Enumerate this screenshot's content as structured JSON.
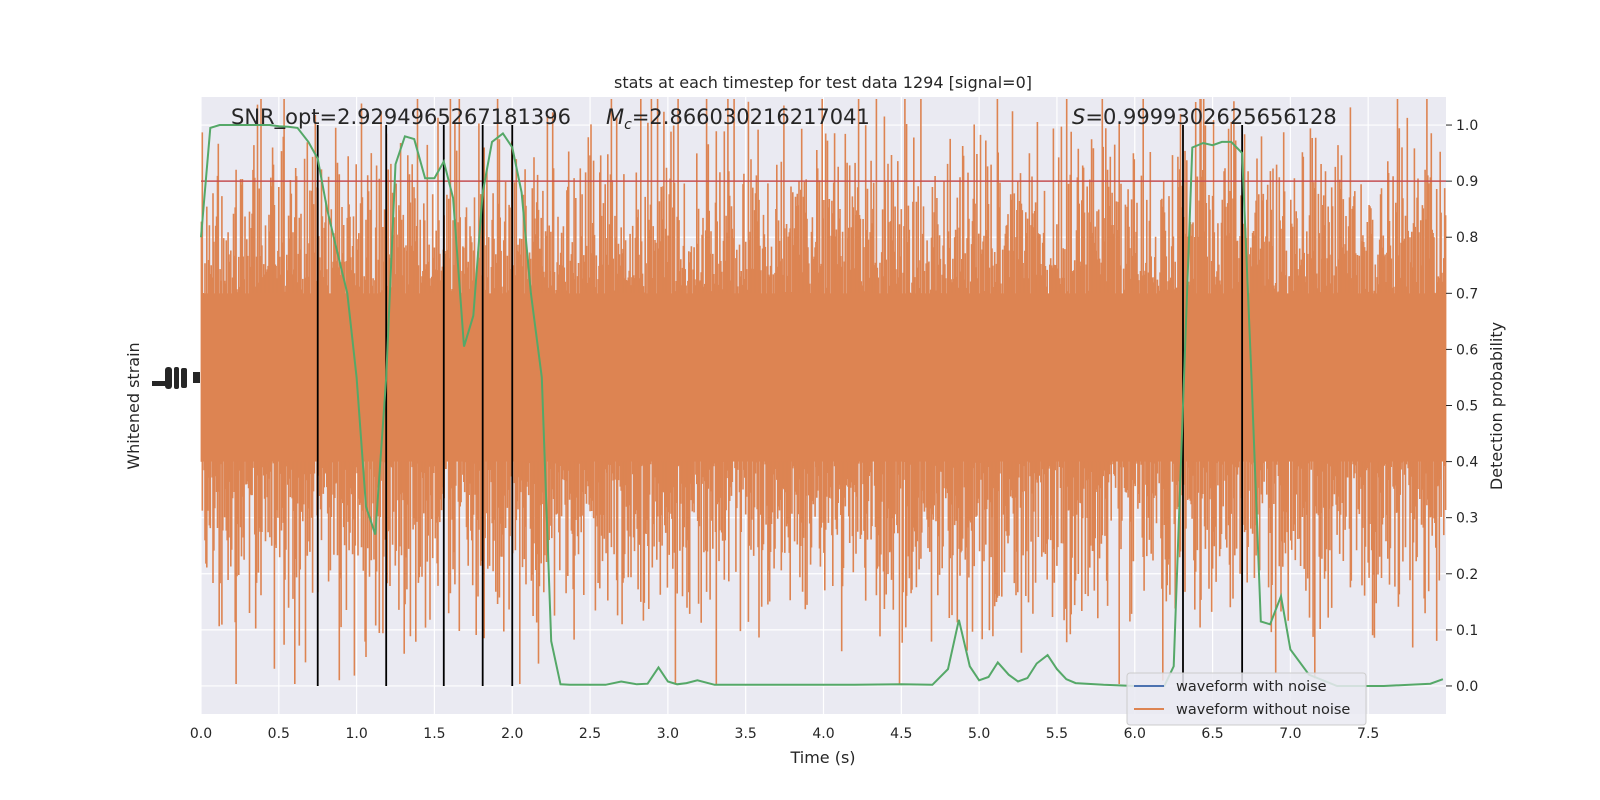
{
  "chart_data": {
    "type": "line",
    "title": "stats at each timestep for test data 1294 [signal=0]",
    "xlabel": "Time (s)",
    "ylabel_left": "Whitened strain",
    "ylabel_right": "Detection probability",
    "xlim": [
      0,
      8.0
    ],
    "ylim_right": [
      -0.05,
      1.05
    ],
    "x_ticks": [
      0.0,
      0.5,
      1.0,
      1.5,
      2.0,
      2.5,
      3.0,
      3.5,
      4.0,
      4.5,
      5.0,
      5.5,
      6.0,
      6.5,
      7.0,
      7.5
    ],
    "x_tick_labels": [
      "0.0",
      "0.5",
      "1.0",
      "1.5",
      "2.0",
      "2.5",
      "3.0",
      "3.5",
      "4.0",
      "4.5",
      "5.0",
      "5.5",
      "6.0",
      "6.5",
      "7.0",
      "7.5"
    ],
    "y_right_ticks": [
      0.0,
      0.1,
      0.2,
      0.3,
      0.4,
      0.5,
      0.6,
      0.7,
      0.8,
      0.9,
      1.0
    ],
    "y_right_tick_labels": [
      "0.0",
      "0.1",
      "0.2",
      "0.3",
      "0.4",
      "0.5",
      "0.6",
      "0.7",
      "0.8",
      "0.9",
      "1.0"
    ],
    "grid": true,
    "legend_position": "lower-right",
    "annotations": {
      "snr": "SNR_opt=2.9294965267181396",
      "mc_symbol": "M",
      "mc_sub": "c",
      "mc_value": "=2.866030216217041",
      "s_symbol": "S",
      "s_value": "=0.9999302625656128"
    },
    "threshold": 0.9,
    "vertical_lines_x": [
      0.75,
      1.19,
      1.56,
      1.81,
      2.0,
      6.31,
      6.69
    ],
    "series": [
      {
        "name": "waveform with noise",
        "color": "#4c72b0",
        "style": "noise-band"
      },
      {
        "name": "waveform without noise",
        "color": "#dd8452",
        "style": "noise-band"
      },
      {
        "name": "",
        "color": "#55a868",
        "style": "probability-line",
        "x": [
          0.0,
          0.06,
          0.12,
          0.19,
          0.25,
          0.31,
          0.37,
          0.44,
          0.5,
          0.56,
          0.62,
          0.69,
          0.75,
          0.81,
          0.87,
          0.94,
          1.0,
          1.06,
          1.12,
          1.19,
          1.25,
          1.31,
          1.37,
          1.44,
          1.5,
          1.56,
          1.62,
          1.69,
          1.75,
          1.81,
          1.87,
          1.94,
          2.0,
          2.06,
          2.12,
          2.19,
          2.25,
          2.31,
          2.37,
          2.6,
          2.7,
          2.8,
          2.87,
          2.94,
          3.0,
          3.06,
          3.12,
          3.19,
          3.3,
          3.5,
          3.8,
          4.2,
          4.5,
          4.7,
          4.8,
          4.87,
          4.94,
          5.0,
          5.06,
          5.12,
          5.19,
          5.25,
          5.31,
          5.37,
          5.44,
          5.5,
          5.56,
          5.62,
          5.8,
          6.0,
          6.19,
          6.25,
          6.31,
          6.37,
          6.44,
          6.5,
          6.56,
          6.62,
          6.69,
          6.75,
          6.81,
          6.87,
          6.94,
          7.0,
          7.12,
          7.3,
          7.6,
          7.9,
          7.98
        ],
        "y": [
          0.8,
          0.995,
          1.0,
          1.0,
          1.0,
          1.0,
          1.0,
          1.0,
          0.998,
          0.997,
          0.995,
          0.97,
          0.94,
          0.85,
          0.78,
          0.7,
          0.55,
          0.32,
          0.27,
          0.55,
          0.93,
          0.98,
          0.975,
          0.905,
          0.905,
          0.935,
          0.87,
          0.605,
          0.66,
          0.88,
          0.97,
          0.985,
          0.96,
          0.88,
          0.7,
          0.55,
          0.08,
          0.003,
          0.002,
          0.002,
          0.008,
          0.003,
          0.004,
          0.033,
          0.008,
          0.003,
          0.005,
          0.01,
          0.002,
          0.002,
          0.002,
          0.002,
          0.003,
          0.002,
          0.03,
          0.118,
          0.035,
          0.01,
          0.016,
          0.042,
          0.02,
          0.008,
          0.014,
          0.04,
          0.055,
          0.03,
          0.012,
          0.005,
          0.002,
          0.0,
          0.0,
          0.035,
          0.5,
          0.96,
          0.968,
          0.964,
          0.97,
          0.97,
          0.95,
          0.55,
          0.115,
          0.11,
          0.16,
          0.065,
          0.02,
          0.0,
          0.0,
          0.004,
          0.012
        ]
      }
    ]
  }
}
